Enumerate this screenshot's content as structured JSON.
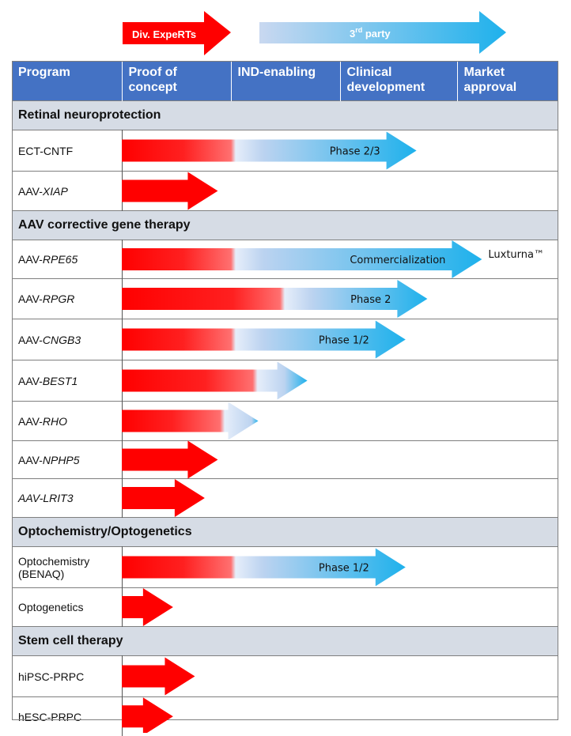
{
  "legend": {
    "div_label": "Div. ExpeRTs",
    "third_label": "3",
    "third_sup": "rd",
    "third_rest": " party"
  },
  "columns": [
    "Program",
    "Proof of concept",
    "IND-enabling",
    "Clinical development",
    "Market approval"
  ],
  "column_lines": [
    [
      "Program",
      ""
    ],
    [
      "Proof of",
      "concept"
    ],
    [
      "IND-enabling",
      ""
    ],
    [
      "Clinical",
      "development"
    ],
    [
      "Market",
      "approval"
    ]
  ],
  "rows": [
    {
      "type": "section",
      "label": "Retinal neuroprotection"
    },
    {
      "type": "program",
      "prefix": "ECT-CNTF",
      "name": "",
      "stage_end": 2.7,
      "red_end": 1.0,
      "fade": 0.0,
      "label": "Phase 2/3"
    },
    {
      "type": "program",
      "prefix": "AAV-",
      "name": "XIAP",
      "stage_end": 0.88,
      "red_end": 0.88,
      "fade": 0.0,
      "label": ""
    },
    {
      "type": "section",
      "label": "AAV corrective gene therapy"
    },
    {
      "type": "program",
      "prefix": "AAV-",
      "name": "RPE65",
      "stage_end": 3.3,
      "red_end": 1.0,
      "fade": 0.0,
      "label": "Commercialization",
      "outside_label": "Luxturna™"
    },
    {
      "type": "program",
      "prefix": "AAV-",
      "name": "RPGR",
      "stage_end": 2.8,
      "red_end": 1.45,
      "fade": 0.0,
      "label": "Phase 2"
    },
    {
      "type": "program",
      "prefix": "AAV-",
      "name": "CNGB3",
      "stage_end": 2.6,
      "red_end": 1.0,
      "fade": 0.0,
      "label": "Phase 1/2"
    },
    {
      "type": "program",
      "prefix": "AAV-",
      "name": "BEST1",
      "stage_end": 1.7,
      "red_end": 1.2,
      "fade": 0.0,
      "label": ""
    },
    {
      "type": "program",
      "prefix": "AAV-",
      "name": "RHO",
      "stage_end": 1.25,
      "red_end": 0.9,
      "fade": 0.0,
      "label": ""
    },
    {
      "type": "program",
      "prefix": "AAV-",
      "name": "NPHP5",
      "stage_end": 0.88,
      "red_end": 0.88,
      "fade": 0.0,
      "label": ""
    },
    {
      "type": "program",
      "prefix": "",
      "name": "AAV-LRIT3",
      "stage_end": 0.76,
      "red_end": 0.76,
      "fade": 0.0,
      "label": ""
    },
    {
      "type": "section",
      "label": "Optochemistry/Optogenetics"
    },
    {
      "type": "program",
      "prefix": "Optochemistry",
      "prefix2": "(BENAQ)",
      "name": "",
      "stage_end": 2.6,
      "red_end": 1.0,
      "fade": 0.0,
      "label": "Phase 1/2"
    },
    {
      "type": "program",
      "prefix": "Optogenetics",
      "name": "",
      "stage_end": 0.47,
      "red_end": 0.47,
      "fade": 0.0,
      "label": ""
    },
    {
      "type": "section",
      "label": "Stem cell therapy"
    },
    {
      "type": "program",
      "prefix": "hiPSC-PRPC",
      "name": "",
      "stage_end": 0.67,
      "red_end": 0.67,
      "fade": 0.0,
      "label": ""
    },
    {
      "type": "program",
      "prefix": "hESC-PRPC",
      "name": "",
      "stage_end": 0.47,
      "red_end": 0.47,
      "fade": 0.0,
      "label": ""
    }
  ],
  "colors": {
    "header": "#4472C4",
    "section": "#D6DCE5",
    "red": "#FF0000",
    "blue": "#29ABE2",
    "light_blue": "#C9D8F0"
  }
}
